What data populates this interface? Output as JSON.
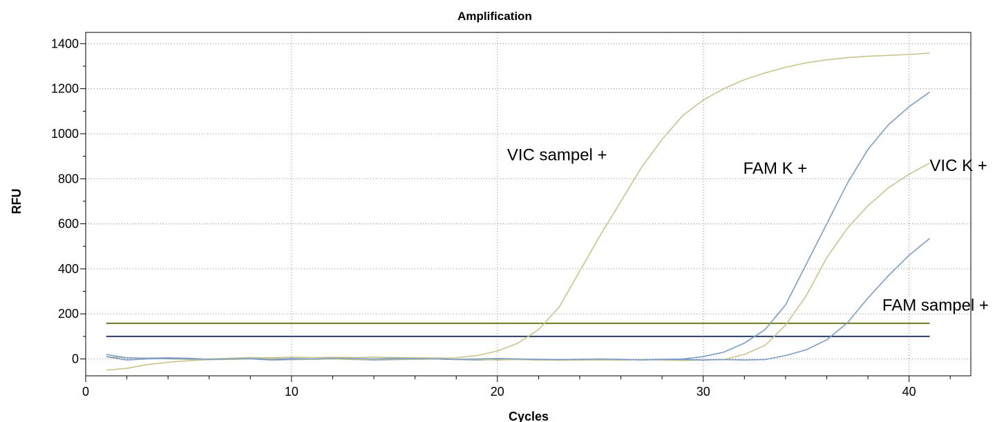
{
  "chart_data": {
    "type": "line",
    "title": "Amplification",
    "xlabel": "Cycles",
    "ylabel": "RFU",
    "xlim": [
      0,
      43
    ],
    "ylim": [
      -75,
      1450
    ],
    "x_ticks": [
      0,
      10,
      20,
      30,
      40
    ],
    "y_ticks": [
      0,
      200,
      400,
      600,
      800,
      1000,
      1200,
      1400
    ],
    "grid": true,
    "colors": {
      "fam": "#7b9cc6",
      "vic": "#c9c48b",
      "fam_threshold": "#2a3d66",
      "vic_threshold": "#6b7a1f"
    },
    "x": [
      1,
      2,
      3,
      4,
      5,
      6,
      7,
      8,
      9,
      10,
      11,
      12,
      13,
      14,
      15,
      16,
      17,
      18,
      19,
      20,
      21,
      22,
      23,
      24,
      25,
      26,
      27,
      28,
      29,
      30,
      31,
      32,
      33,
      34,
      35,
      36,
      37,
      38,
      39,
      40,
      41
    ],
    "series": [
      {
        "name": "VIC sampel +",
        "color_key": "vic",
        "values": [
          10,
          5,
          3,
          0,
          -2,
          0,
          3,
          6,
          5,
          8,
          6,
          7,
          6,
          8,
          6,
          5,
          4,
          5,
          15,
          35,
          70,
          130,
          230,
          390,
          550,
          700,
          850,
          975,
          1080,
          1150,
          1200,
          1240,
          1270,
          1295,
          1315,
          1328,
          1338,
          1344,
          1348,
          1352,
          1358
        ]
      },
      {
        "name": "FAM K +",
        "color_key": "fam",
        "values": [
          10,
          -5,
          0,
          2,
          0,
          -3,
          -2,
          0,
          -5,
          -3,
          -2,
          0,
          -2,
          -5,
          -3,
          -2,
          0,
          -3,
          -5,
          -3,
          -2,
          -5,
          -3,
          -5,
          -3,
          -5,
          -3,
          -2,
          0,
          10,
          30,
          70,
          130,
          240,
          420,
          600,
          780,
          930,
          1040,
          1120,
          1185
        ]
      },
      {
        "name": "VIC K +",
        "color_key": "vic",
        "values": [
          -50,
          -42,
          -25,
          -15,
          -8,
          -3,
          -2,
          0,
          2,
          0,
          -2,
          0,
          -3,
          -2,
          0,
          -2,
          0,
          -3,
          -2,
          -5,
          -3,
          -5,
          -6,
          -5,
          -5,
          -5,
          -3,
          -5,
          -7,
          -5,
          -3,
          20,
          60,
          150,
          280,
          450,
          580,
          680,
          760,
          820,
          870
        ]
      },
      {
        "name": "FAM sampel +",
        "color_key": "fam",
        "values": [
          20,
          5,
          3,
          5,
          3,
          -2,
          0,
          2,
          -3,
          2,
          0,
          3,
          2,
          0,
          3,
          2,
          0,
          -2,
          0,
          2,
          0,
          -2,
          -3,
          -2,
          0,
          -2,
          -5,
          -3,
          -2,
          -5,
          -3,
          -5,
          -3,
          15,
          40,
          85,
          160,
          270,
          370,
          460,
          535
        ]
      }
    ],
    "thresholds": [
      {
        "color_key": "vic_threshold",
        "value": 158
      },
      {
        "color_key": "fam_threshold",
        "value": 100
      }
    ],
    "annotations": [
      {
        "text": "VIC sampel +",
        "x": 22.9,
        "y": 882,
        "anchor": "middle"
      },
      {
        "text": "FAM K +",
        "x": 33.5,
        "y": 823,
        "anchor": "middle"
      },
      {
        "text": "VIC K +",
        "x": 41.0,
        "y": 834,
        "anchor": "start"
      },
      {
        "text": "FAM sampel +",
        "x": 38.7,
        "y": 215,
        "anchor": "start"
      }
    ]
  }
}
